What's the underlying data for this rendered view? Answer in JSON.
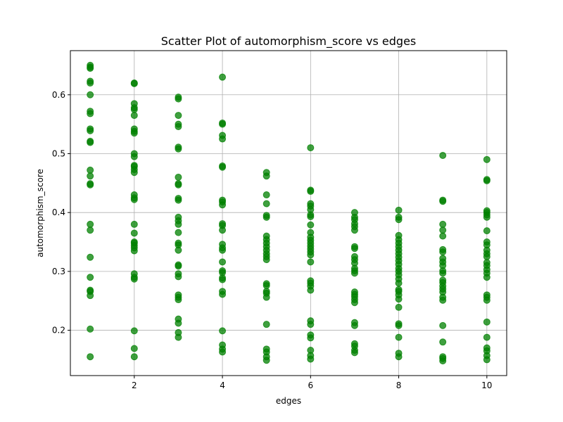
{
  "chart_data": {
    "type": "scatter",
    "title": "Scatter Plot of automorphism_score vs edges",
    "xlabel": "edges",
    "ylabel": "automorphism_score",
    "xlim": [
      0.55,
      10.45
    ],
    "ylim": [
      0.123,
      0.675
    ],
    "xticks": [
      2,
      4,
      6,
      8,
      10
    ],
    "yticks": [
      0.2,
      0.3,
      0.4,
      0.5,
      0.6
    ],
    "xtick_labels": [
      "2",
      "4",
      "6",
      "8",
      "10"
    ],
    "ytick_labels": [
      "0.2",
      "0.3",
      "0.4",
      "0.5",
      "0.6"
    ],
    "grid": true,
    "marker_color": "#008000",
    "marker_alpha": 0.75,
    "series": [
      {
        "points": [
          [
            1,
            0.65
          ],
          [
            1,
            0.647
          ],
          [
            1,
            0.645
          ],
          [
            1,
            0.623
          ],
          [
            1,
            0.62
          ],
          [
            1,
            0.6
          ],
          [
            1,
            0.572
          ],
          [
            1,
            0.568
          ],
          [
            1,
            0.542
          ],
          [
            1,
            0.539
          ],
          [
            1,
            0.521
          ],
          [
            1,
            0.519
          ],
          [
            1,
            0.472
          ],
          [
            1,
            0.462
          ],
          [
            1,
            0.449
          ],
          [
            1,
            0.447
          ],
          [
            1,
            0.38
          ],
          [
            1,
            0.37
          ],
          [
            1,
            0.324
          ],
          [
            1,
            0.29
          ],
          [
            1,
            0.268
          ],
          [
            1,
            0.266
          ],
          [
            1,
            0.259
          ],
          [
            1,
            0.202
          ],
          [
            1,
            0.155
          ],
          [
            2,
            0.62
          ],
          [
            2,
            0.619
          ],
          [
            2,
            0.585
          ],
          [
            2,
            0.578
          ],
          [
            2,
            0.575
          ],
          [
            2,
            0.565
          ],
          [
            2,
            0.542
          ],
          [
            2,
            0.538
          ],
          [
            2,
            0.535
          ],
          [
            2,
            0.5
          ],
          [
            2,
            0.495
          ],
          [
            2,
            0.48
          ],
          [
            2,
            0.478
          ],
          [
            2,
            0.473
          ],
          [
            2,
            0.468
          ],
          [
            2,
            0.43
          ],
          [
            2,
            0.425
          ],
          [
            2,
            0.422
          ],
          [
            2,
            0.38
          ],
          [
            2,
            0.365
          ],
          [
            2,
            0.35
          ],
          [
            2,
            0.348
          ],
          [
            2,
            0.344
          ],
          [
            2,
            0.34
          ],
          [
            2,
            0.335
          ],
          [
            2,
            0.296
          ],
          [
            2,
            0.29
          ],
          [
            2,
            0.287
          ],
          [
            2,
            0.199
          ],
          [
            2,
            0.169
          ],
          [
            2,
            0.155
          ],
          [
            3,
            0.596
          ],
          [
            3,
            0.593
          ],
          [
            3,
            0.565
          ],
          [
            3,
            0.55
          ],
          [
            3,
            0.546
          ],
          [
            3,
            0.511
          ],
          [
            3,
            0.508
          ],
          [
            3,
            0.46
          ],
          [
            3,
            0.449
          ],
          [
            3,
            0.447
          ],
          [
            3,
            0.424
          ],
          [
            3,
            0.421
          ],
          [
            3,
            0.392
          ],
          [
            3,
            0.386
          ],
          [
            3,
            0.38
          ],
          [
            3,
            0.366
          ],
          [
            3,
            0.348
          ],
          [
            3,
            0.345
          ],
          [
            3,
            0.336
          ],
          [
            3,
            0.311
          ],
          [
            3,
            0.309
          ],
          [
            3,
            0.296
          ],
          [
            3,
            0.291
          ],
          [
            3,
            0.26
          ],
          [
            3,
            0.256
          ],
          [
            3,
            0.252
          ],
          [
            3,
            0.219
          ],
          [
            3,
            0.212
          ],
          [
            3,
            0.196
          ],
          [
            3,
            0.188
          ],
          [
            4,
            0.63
          ],
          [
            4,
            0.552
          ],
          [
            4,
            0.55
          ],
          [
            4,
            0.531
          ],
          [
            4,
            0.525
          ],
          [
            4,
            0.479
          ],
          [
            4,
            0.477
          ],
          [
            4,
            0.421
          ],
          [
            4,
            0.418
          ],
          [
            4,
            0.413
          ],
          [
            4,
            0.381
          ],
          [
            4,
            0.378
          ],
          [
            4,
            0.37
          ],
          [
            4,
            0.346
          ],
          [
            4,
            0.34
          ],
          [
            4,
            0.336
          ],
          [
            4,
            0.316
          ],
          [
            4,
            0.301
          ],
          [
            4,
            0.298
          ],
          [
            4,
            0.289
          ],
          [
            4,
            0.286
          ],
          [
            4,
            0.266
          ],
          [
            4,
            0.261
          ],
          [
            4,
            0.199
          ],
          [
            4,
            0.175
          ],
          [
            4,
            0.168
          ],
          [
            4,
            0.163
          ],
          [
            5,
            0.468
          ],
          [
            5,
            0.462
          ],
          [
            5,
            0.43
          ],
          [
            5,
            0.415
          ],
          [
            5,
            0.395
          ],
          [
            5,
            0.392
          ],
          [
            5,
            0.36
          ],
          [
            5,
            0.354
          ],
          [
            5,
            0.348
          ],
          [
            5,
            0.342
          ],
          [
            5,
            0.336
          ],
          [
            5,
            0.33
          ],
          [
            5,
            0.325
          ],
          [
            5,
            0.32
          ],
          [
            5,
            0.279
          ],
          [
            5,
            0.276
          ],
          [
            5,
            0.266
          ],
          [
            5,
            0.263
          ],
          [
            5,
            0.256
          ],
          [
            5,
            0.21
          ],
          [
            5,
            0.168
          ],
          [
            5,
            0.163
          ],
          [
            5,
            0.155
          ],
          [
            5,
            0.149
          ],
          [
            6,
            0.51
          ],
          [
            6,
            0.438
          ],
          [
            6,
            0.436
          ],
          [
            6,
            0.415
          ],
          [
            6,
            0.411
          ],
          [
            6,
            0.405
          ],
          [
            6,
            0.396
          ],
          [
            6,
            0.393
          ],
          [
            6,
            0.379
          ],
          [
            6,
            0.366
          ],
          [
            6,
            0.358
          ],
          [
            6,
            0.353
          ],
          [
            6,
            0.348
          ],
          [
            6,
            0.343
          ],
          [
            6,
            0.338
          ],
          [
            6,
            0.333
          ],
          [
            6,
            0.328
          ],
          [
            6,
            0.316
          ],
          [
            6,
            0.284
          ],
          [
            6,
            0.28
          ],
          [
            6,
            0.275
          ],
          [
            6,
            0.268
          ],
          [
            6,
            0.216
          ],
          [
            6,
            0.21
          ],
          [
            6,
            0.192
          ],
          [
            6,
            0.187
          ],
          [
            6,
            0.166
          ],
          [
            6,
            0.157
          ],
          [
            6,
            0.151
          ],
          [
            7,
            0.4
          ],
          [
            7,
            0.392
          ],
          [
            7,
            0.388
          ],
          [
            7,
            0.381
          ],
          [
            7,
            0.376
          ],
          [
            7,
            0.37
          ],
          [
            7,
            0.342
          ],
          [
            7,
            0.339
          ],
          [
            7,
            0.325
          ],
          [
            7,
            0.32
          ],
          [
            7,
            0.314
          ],
          [
            7,
            0.305
          ],
          [
            7,
            0.301
          ],
          [
            7,
            0.297
          ],
          [
            7,
            0.265
          ],
          [
            7,
            0.261
          ],
          [
            7,
            0.257
          ],
          [
            7,
            0.252
          ],
          [
            7,
            0.247
          ],
          [
            7,
            0.213
          ],
          [
            7,
            0.208
          ],
          [
            7,
            0.177
          ],
          [
            7,
            0.173
          ],
          [
            7,
            0.166
          ],
          [
            7,
            0.162
          ],
          [
            8,
            0.404
          ],
          [
            8,
            0.392
          ],
          [
            8,
            0.388
          ],
          [
            8,
            0.361
          ],
          [
            8,
            0.354
          ],
          [
            8,
            0.348
          ],
          [
            8,
            0.342
          ],
          [
            8,
            0.336
          ],
          [
            8,
            0.33
          ],
          [
            8,
            0.324
          ],
          [
            8,
            0.318
          ],
          [
            8,
            0.312
          ],
          [
            8,
            0.305
          ],
          [
            8,
            0.3
          ],
          [
            8,
            0.294
          ],
          [
            8,
            0.287
          ],
          [
            8,
            0.28
          ],
          [
            8,
            0.269
          ],
          [
            8,
            0.266
          ],
          [
            8,
            0.26
          ],
          [
            8,
            0.253
          ],
          [
            8,
            0.239
          ],
          [
            8,
            0.211
          ],
          [
            8,
            0.208
          ],
          [
            8,
            0.188
          ],
          [
            8,
            0.161
          ],
          [
            8,
            0.155
          ],
          [
            9,
            0.497
          ],
          [
            9,
            0.421
          ],
          [
            9,
            0.419
          ],
          [
            9,
            0.38
          ],
          [
            9,
            0.37
          ],
          [
            9,
            0.36
          ],
          [
            9,
            0.337
          ],
          [
            9,
            0.333
          ],
          [
            9,
            0.322
          ],
          [
            9,
            0.316
          ],
          [
            9,
            0.31
          ],
          [
            9,
            0.301
          ],
          [
            9,
            0.297
          ],
          [
            9,
            0.285
          ],
          [
            9,
            0.281
          ],
          [
            9,
            0.275
          ],
          [
            9,
            0.27
          ],
          [
            9,
            0.265
          ],
          [
            9,
            0.256
          ],
          [
            9,
            0.251
          ],
          [
            9,
            0.208
          ],
          [
            9,
            0.18
          ],
          [
            9,
            0.155
          ],
          [
            9,
            0.152
          ],
          [
            9,
            0.148
          ],
          [
            10,
            0.49
          ],
          [
            10,
            0.456
          ],
          [
            10,
            0.454
          ],
          [
            10,
            0.403
          ],
          [
            10,
            0.4
          ],
          [
            10,
            0.396
          ],
          [
            10,
            0.392
          ],
          [
            10,
            0.369
          ],
          [
            10,
            0.35
          ],
          [
            10,
            0.345
          ],
          [
            10,
            0.336
          ],
          [
            10,
            0.33
          ],
          [
            10,
            0.325
          ],
          [
            10,
            0.315
          ],
          [
            10,
            0.31
          ],
          [
            10,
            0.303
          ],
          [
            10,
            0.297
          ],
          [
            10,
            0.29
          ],
          [
            10,
            0.26
          ],
          [
            10,
            0.256
          ],
          [
            10,
            0.251
          ],
          [
            10,
            0.214
          ],
          [
            10,
            0.188
          ],
          [
            10,
            0.17
          ],
          [
            10,
            0.165
          ],
          [
            10,
            0.157
          ],
          [
            10,
            0.15
          ]
        ]
      }
    ]
  }
}
